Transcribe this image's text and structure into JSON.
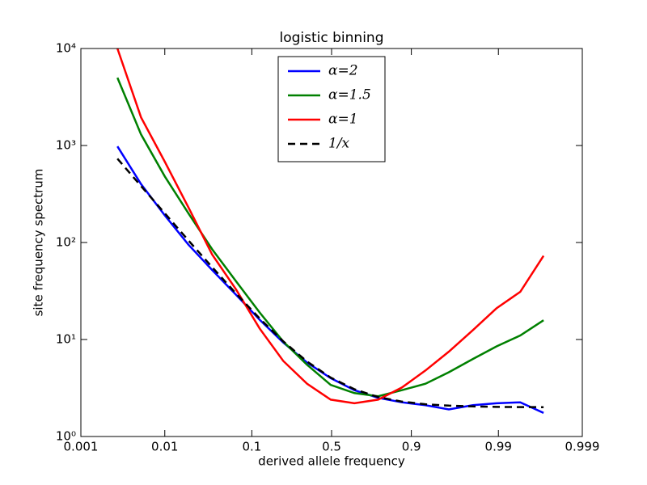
{
  "chart_data": {
    "type": "line",
    "title": "logistic binning",
    "xlabel": "derived allele frequency",
    "ylabel": "site frequency spectrum",
    "xscale": "logit",
    "yscale": "log",
    "x": [
      0.00273,
      0.00523,
      0.01,
      0.019,
      0.036,
      0.0669,
      0.121,
      0.209,
      0.337,
      0.494,
      0.652,
      0.783,
      0.874,
      0.93,
      0.962,
      0.98,
      0.9895,
      0.9945,
      0.9971
    ],
    "xlim": [
      0.001,
      0.999
    ],
    "xticks": [
      0.001,
      0.01,
      0.1,
      0.5,
      0.9,
      0.99,
      0.999
    ],
    "ylim": [
      1,
      10000
    ],
    "yticks": [
      {
        "value": 1,
        "label": "10⁰"
      },
      {
        "value": 10,
        "label": "10¹"
      },
      {
        "value": 100,
        "label": "10²"
      },
      {
        "value": 1000,
        "label": "10³"
      },
      {
        "value": 10000,
        "label": "10⁴"
      }
    ],
    "legend": "upper center",
    "series": [
      {
        "name": "α=2",
        "color": "#0000ff",
        "linestyle": "solid",
        "values": [
          980,
          400,
          190,
          95,
          52,
          29,
          16,
          9.3,
          5.8,
          4.0,
          3.0,
          2.5,
          2.25,
          2.1,
          1.9,
          2.1,
          2.2,
          2.25,
          1.75
        ]
      },
      {
        "name": "α=1.5",
        "color": "#008000",
        "linestyle": "solid",
        "values": [
          5000,
          1300,
          480,
          200,
          85,
          40,
          19,
          9.5,
          5.5,
          3.4,
          2.8,
          2.6,
          3.0,
          3.5,
          4.6,
          6.3,
          8.5,
          11,
          15.8
        ]
      },
      {
        "name": "α=1",
        "color": "#ff0000",
        "linestyle": "solid",
        "values": [
          10000,
          1950,
          680,
          230,
          75,
          33,
          13,
          6,
          3.5,
          2.4,
          2.2,
          2.4,
          3.2,
          4.8,
          7.5,
          12.5,
          21,
          31,
          73
        ]
      },
      {
        "name": "1/x",
        "color": "#000000",
        "linestyle": "dashed",
        "values": [
          732,
          382,
          200,
          105,
          55.6,
          29.9,
          16.5,
          9.57,
          5.93,
          4.05,
          3.07,
          2.55,
          2.29,
          2.15,
          2.08,
          2.04,
          2.02,
          2.01,
          2.006
        ]
      }
    ]
  }
}
